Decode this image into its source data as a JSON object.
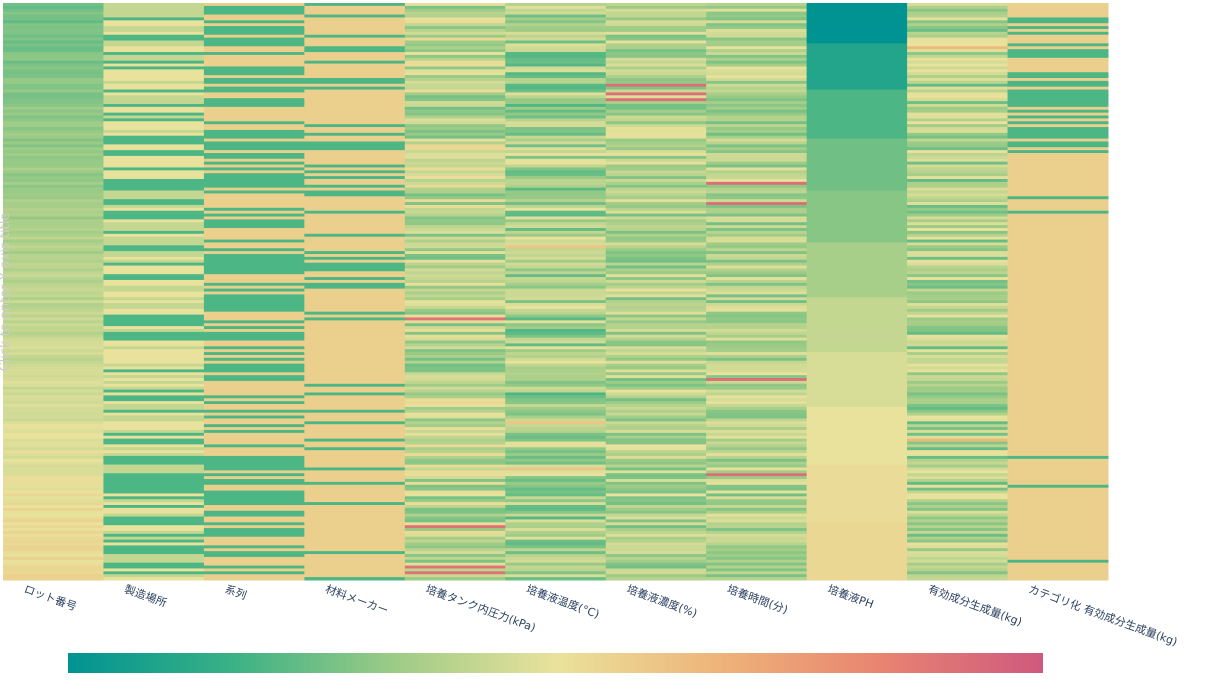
{
  "chart_data": {
    "type": "heatmap",
    "title": "",
    "ylabel": "Click to enter Y axis title",
    "xlabel": "",
    "categories": [
      "ロット番号",
      "製造場所",
      "系列",
      "材料メーカー",
      "培養タンク内圧力(kPa)",
      "培養液温度(°C)",
      "培養液濃度(%)",
      "培養時間(分)",
      "培養液PH",
      "有効成分生成量(kg)",
      "カテゴリ化 有効成分生成量(kg)"
    ],
    "rows": 200,
    "zrange": [
      0,
      1
    ],
    "colorscale": [
      "#009392",
      "#39b185",
      "#9ccb86",
      "#e9e29c",
      "#eeb479",
      "#e88471",
      "#cf597e"
    ],
    "colorbar": {
      "orientation": "horizontal",
      "tick_labels": []
    },
    "column_profiles": [
      {
        "kind": "gradient",
        "from": 0.25,
        "to": 0.55,
        "noise": 0.04
      },
      {
        "kind": "categorical",
        "levels": [
          0.2,
          0.42,
          0.5
        ]
      },
      {
        "kind": "categorical",
        "levels": [
          0.2,
          0.57
        ]
      },
      {
        "kind": "categorical",
        "levels": [
          0.57,
          0.57,
          0.57,
          0.2
        ]
      },
      {
        "kind": "noisy",
        "center": 0.4,
        "spread": 0.14,
        "outlier": 0.9
      },
      {
        "kind": "noisy",
        "center": 0.35,
        "spread": 0.15,
        "outlier": 0.6
      },
      {
        "kind": "noisy",
        "center": 0.38,
        "spread": 0.12,
        "outlier": 0.92
      },
      {
        "kind": "noisy",
        "center": 0.38,
        "spread": 0.12,
        "outlier": 0.92
      },
      {
        "kind": "steps",
        "levels": [
          0.0,
          0.1,
          0.2,
          0.26,
          0.3,
          0.36,
          0.42,
          0.46,
          0.5,
          0.52,
          0.54
        ]
      },
      {
        "kind": "noisy",
        "center": 0.37,
        "spread": 0.14,
        "outlier": 0.65
      },
      {
        "kind": "category-tail",
        "levels": [
          0.2,
          0.57
        ]
      }
    ]
  }
}
